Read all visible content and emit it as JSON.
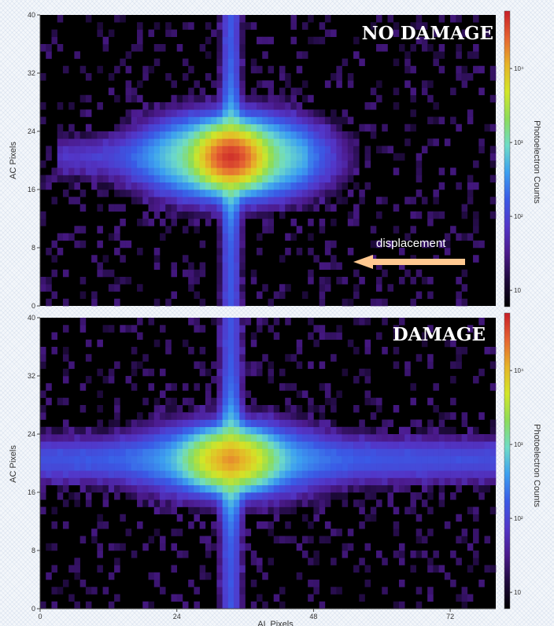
{
  "chart_data": [
    {
      "type": "heatmap",
      "title": "NO DAMAGE",
      "xlabel": "AL Pixels",
      "ylabel": "AC Pixels",
      "xlim": [
        0,
        80
      ],
      "ylim": [
        0,
        40
      ],
      "x_ticks": [
        0,
        24,
        48,
        72
      ],
      "y_ticks": [
        0,
        8,
        16,
        24,
        32,
        40
      ],
      "grid": false,
      "colorbar": {
        "label": "Photoelectron Counts",
        "scale": "log",
        "range": [
          6,
          60000
        ],
        "ticks": [
          {
            "value": 10,
            "label": "10"
          },
          {
            "value": 100,
            "label": "10²"
          },
          {
            "value": 1000,
            "label": "10³"
          },
          {
            "value": 10000,
            "label": "10⁴"
          }
        ]
      },
      "source": {
        "x": 33.5,
        "y": 20.5,
        "peak_counts": 40000,
        "h_width": 2.6,
        "h_halo_width": 7,
        "v_width": 0.9,
        "arm_left_extent": 3,
        "arm_right_extent": 47,
        "arm_height": 1.6,
        "arm_counts": 120,
        "arm_falloff": 16,
        "v_arm_counts": 150
      },
      "background_counts": 10,
      "annotation": {
        "text": "displacement",
        "arrow": "pointing left"
      }
    },
    {
      "type": "heatmap",
      "title": "DAMAGE",
      "xlabel": "AL Pixels",
      "ylabel": "AC Pixels",
      "xlim": [
        0,
        80
      ],
      "ylim": [
        0,
        40
      ],
      "x_ticks": [
        0,
        24,
        48,
        72
      ],
      "y_ticks": [
        0,
        8,
        16,
        24,
        32,
        40
      ],
      "grid": false,
      "colorbar": {
        "label": "Photoelectron Counts",
        "scale": "log",
        "range": [
          6,
          60000
        ],
        "ticks": [
          {
            "value": 10,
            "label": "10"
          },
          {
            "value": 100,
            "label": "10²"
          },
          {
            "value": 1000,
            "label": "10³"
          },
          {
            "value": 10000,
            "label": "10⁴"
          }
        ]
      },
      "source": {
        "x": 33.5,
        "y": 20.5,
        "peak_counts": 12000,
        "h_width": 3.4,
        "h_halo_width": 8,
        "v_width": 1.0,
        "arm_left_extent": 0.5,
        "arm_right_extent": 80,
        "arm_height": 1.7,
        "arm_counts": 140,
        "arm_falloff": 60,
        "v_arm_counts": 140
      },
      "background_counts": 10
    }
  ],
  "colors": {
    "background": "#000000",
    "colormap": [
      "#000000",
      "#1e0a3c",
      "#4b1a8c",
      "#5236c8",
      "#3a5ae6",
      "#3ca0f0",
      "#6edcc8",
      "#8cdc5a",
      "#d2e628",
      "#e6b428",
      "#e66432",
      "#c81e28"
    ],
    "annotation_arrow": "#ffc890"
  }
}
